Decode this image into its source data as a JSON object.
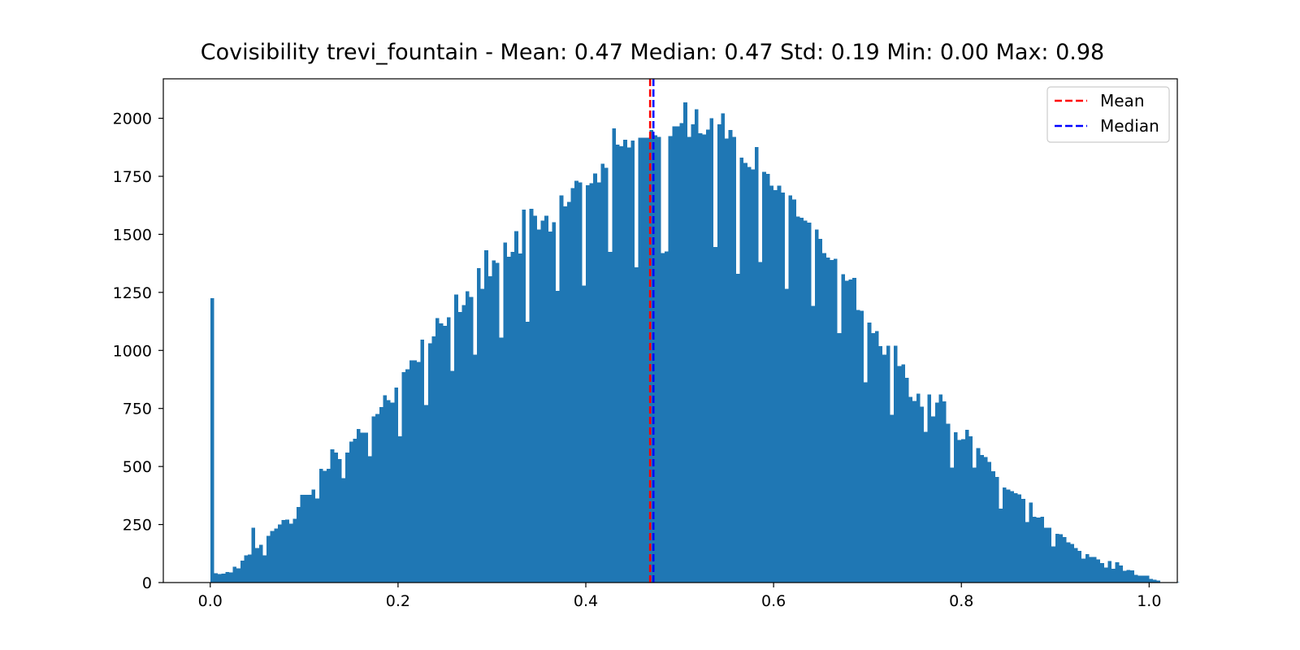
{
  "chart_data": {
    "type": "bar",
    "title": "Covisibility trevi_fountain - Mean: 0.47 Median: 0.47 Std: 0.19 Min: 0.00 Max: 0.98",
    "xlabel": "",
    "ylabel": "",
    "xlim": [
      -0.05,
      1.03
    ],
    "ylim": [
      0,
      2170
    ],
    "xticks": [
      0.0,
      0.2,
      0.4,
      0.6,
      0.8,
      1.0
    ],
    "xtick_labels": [
      "0.0",
      "0.2",
      "0.4",
      "0.6",
      "0.8",
      "1.0"
    ],
    "yticks": [
      0,
      250,
      500,
      750,
      1000,
      1250,
      1500,
      1750,
      2000
    ],
    "ytick_labels": [
      "0",
      "250",
      "500",
      "750",
      "1000",
      "1250",
      "1500",
      "1750",
      "2000"
    ],
    "bin_start": 0.0,
    "bin_width": 0.004,
    "bar_color": "#1f77b4",
    "values": [
      1225,
      40,
      36,
      38,
      46,
      44,
      68,
      62,
      94,
      118,
      120,
      236,
      148,
      162,
      118,
      202,
      222,
      232,
      250,
      270,
      272,
      254,
      275,
      326,
      378,
      378,
      378,
      400,
      362,
      490,
      482,
      490,
      574,
      560,
      532,
      450,
      560,
      608,
      620,
      662,
      645,
      645,
      545,
      716,
      726,
      756,
      806,
      786,
      776,
      840,
      630,
      906,
      918,
      958,
      958,
      950,
      1046,
      764,
      1030,
      1060,
      1140,
      1116,
      1106,
      1142,
      912,
      1240,
      1166,
      1196,
      1254,
      1230,
      982,
      1355,
      1266,
      1432,
      1320,
      1388,
      1378,
      1056,
      1464,
      1404,
      1424,
      1514,
      1418,
      1606,
      1124,
      1610,
      1580,
      1520,
      1560,
      1580,
      1512,
      1552,
      1256,
      1668,
      1620,
      1640,
      1700,
      1730,
      1724,
      1280,
      1712,
      1720,
      1762,
      1724,
      1804,
      1786,
      1424,
      1956,
      1886,
      1880,
      1908,
      1874,
      1904,
      1358,
      1916,
      1916,
      1916,
      1950,
      1926,
      1920,
      1420,
      1426,
      1924,
      1966,
      1966,
      1980,
      2068,
      1920,
      1974,
      2038,
      1936,
      1930,
      1952,
      2000,
      1446,
      1974,
      2022,
      1912,
      1950,
      1920,
      1330,
      1830,
      1808,
      1790,
      1780,
      1876,
      1380,
      1770,
      1760,
      1710,
      1690,
      1710,
      1680,
      1266,
      1668,
      1650,
      1576,
      1572,
      1560,
      1550,
      1192,
      1520,
      1480,
      1420,
      1400,
      1390,
      1395,
      1074,
      1328,
      1300,
      1305,
      1312,
      1175,
      1170,
      862,
      1120,
      1074,
      1084,
      1018,
      982,
      1020,
      722,
      1020,
      932,
      940,
      882,
      800,
      782,
      814,
      758,
      650,
      810,
      716,
      776,
      810,
      780,
      685,
      496,
      648,
      615,
      618,
      658,
      630,
      495,
      580,
      550,
      540,
      520,
      480,
      455,
      318,
      410,
      400,
      394,
      385,
      380,
      360,
      260,
      345,
      284,
      280,
      284,
      236,
      236,
      156,
      210,
      208,
      196,
      174,
      166,
      148,
      136,
      104,
      122,
      110,
      110,
      100,
      84,
      64,
      92,
      60,
      88,
      74,
      50,
      54,
      52,
      34,
      30,
      30,
      30,
      16,
      12,
      8,
      2,
      2,
      2,
      1,
      1
    ],
    "annotations": [
      {
        "name": "Mean",
        "x": 0.4685,
        "color": "#ff0000",
        "style": "dashed"
      },
      {
        "name": "Median",
        "x": 0.472,
        "color": "#0000ff",
        "style": "dashed"
      }
    ],
    "legend": {
      "placement": "top-right",
      "entries": [
        "Mean",
        "Median"
      ]
    },
    "grid": false
  }
}
